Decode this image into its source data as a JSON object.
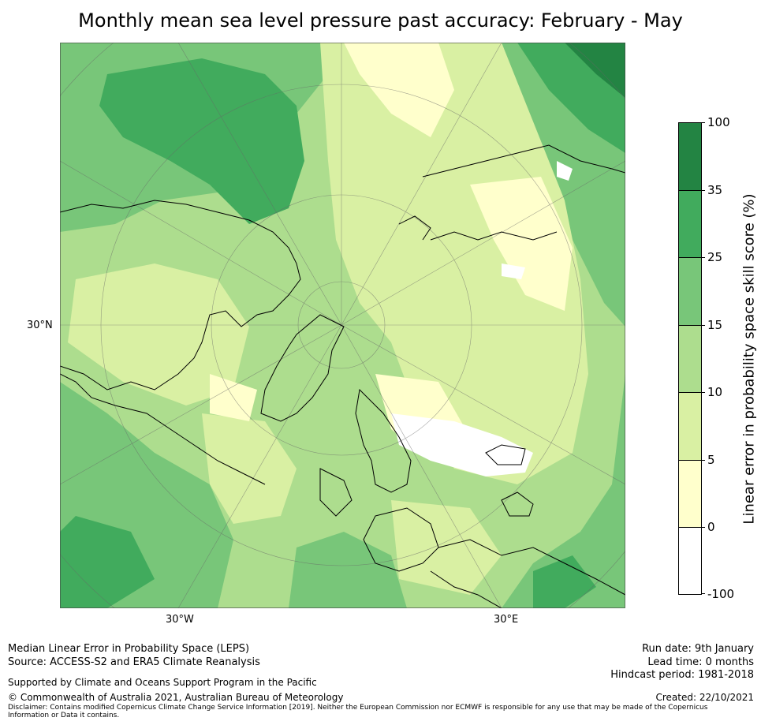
{
  "title": "Monthly mean sea level pressure past accuracy: February - May",
  "map": {
    "axis_labels": {
      "lat": "30°N",
      "lon_west": "30°W",
      "lon_east": "30°E"
    }
  },
  "legend": {
    "title": "Linear error in probability space skill score (%)",
    "ticks": [
      "100",
      "35",
      "25",
      "15",
      "10",
      "5",
      "0",
      "-100"
    ],
    "colors": [
      "#238443",
      "#41ab5d",
      "#78c679",
      "#addd8e",
      "#d9f0a3",
      "#ffffcc",
      "#ffffff"
    ]
  },
  "footer": {
    "method": "Median Linear Error in Probability Space (LEPS)",
    "source": "Source: ACCESS-S2 and ERA5 Climate Reanalysis",
    "support": "Supported by Climate and Oceans Support Program in the Pacific",
    "copyright": "© Commonwealth of Australia 2021, Australian Bureau of Meteorology",
    "disclaimer": "Disclaimer: Contains modified Copernicus Climate Change Service Information [2019]. Neither the European Commission nor ECMWF is responsible for any use that may be made of the Copernicus Information or Data it contains.",
    "run_date": "Run date: 9th January",
    "lead_time": "Lead time: 0 months",
    "hindcast": "Hindcast period: 1981-2018",
    "created": "Created: 22/10/2021"
  }
}
